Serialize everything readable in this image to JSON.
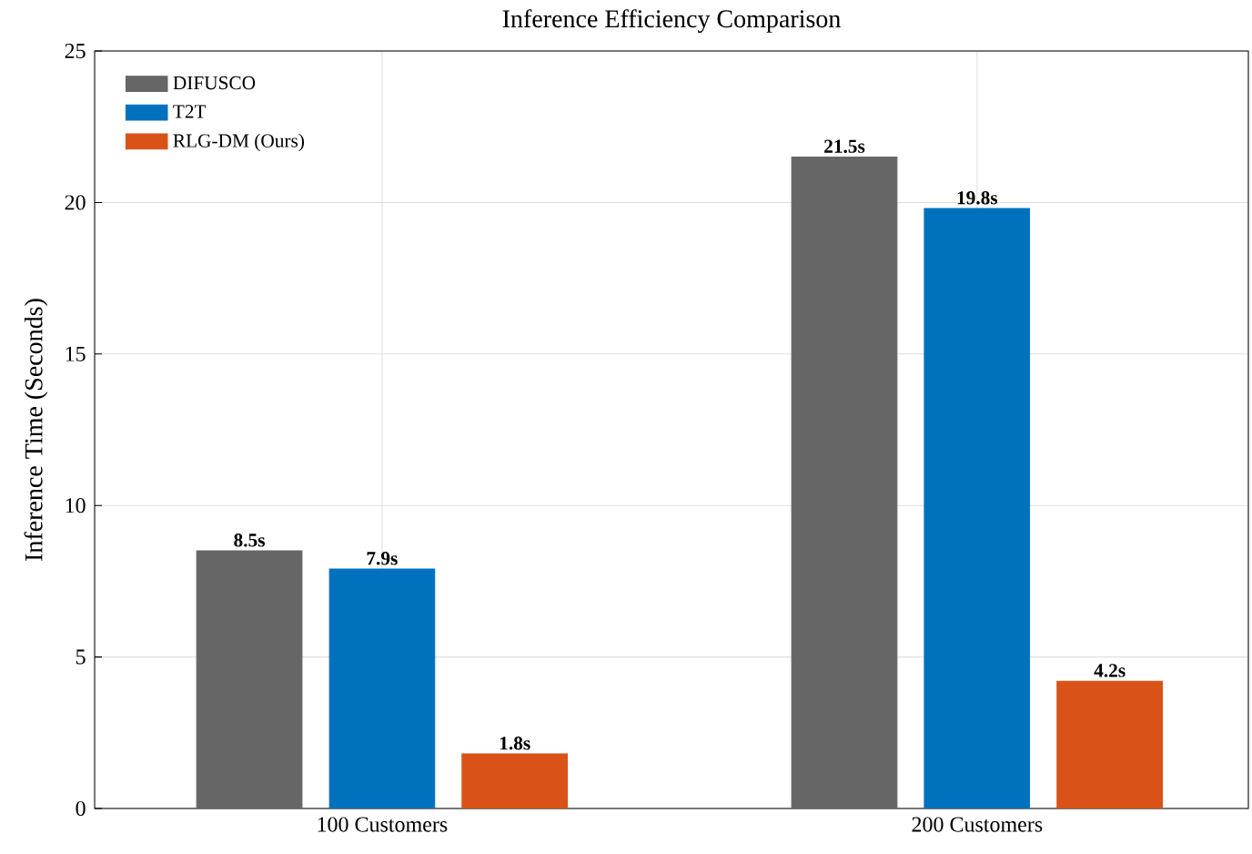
{
  "chart_data": {
    "type": "bar",
    "title": "Inference Efficiency Comparison",
    "ylabel": "Inference Time (Seconds)",
    "categories": [
      "100 Customers",
      "200 Customers"
    ],
    "series": [
      {
        "name": "DIFUSCO",
        "color": "#666666",
        "values": [
          8.5,
          21.5
        ],
        "value_labels": [
          "8.5s",
          "21.5s"
        ]
      },
      {
        "name": "T2T",
        "color": "#0072bd",
        "values": [
          7.9,
          19.8
        ],
        "value_labels": [
          "7.9s",
          "19.8s"
        ]
      },
      {
        "name": "RLG-DM (Ours)",
        "color": "#d95319",
        "values": [
          1.8,
          4.2
        ],
        "value_labels": [
          "1.8s",
          "4.2s"
        ]
      }
    ],
    "ylim": [
      0,
      25
    ],
    "yticks": [
      0,
      5,
      10,
      15,
      20,
      25
    ],
    "grid": true,
    "legend": "top left"
  }
}
